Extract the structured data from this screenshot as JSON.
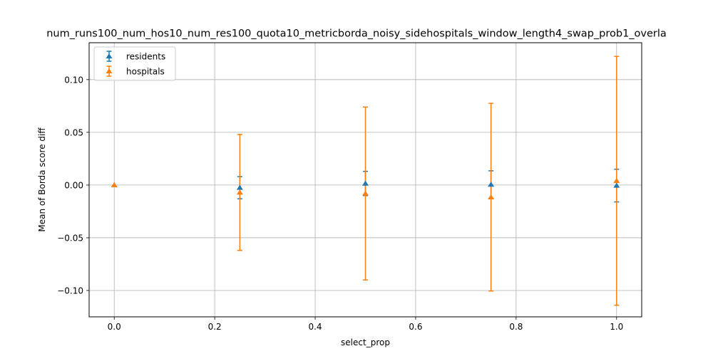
{
  "chart_data": {
    "type": "scatter",
    "title": "num_runs100_num_hos10_num_res100_quota10_metricborda_noisy_sidehospitals_window_length4_swap_prob1_overla",
    "xlabel": "select_prop",
    "ylabel": "Mean of Borda score diff",
    "xlim": [
      -0.05,
      1.05
    ],
    "ylim": [
      -0.125,
      0.135
    ],
    "xticks": [
      0.0,
      0.2,
      0.4,
      0.6,
      0.8,
      1.0
    ],
    "xtick_labels": [
      "0.0",
      "0.2",
      "0.4",
      "0.6",
      "0.8",
      "1.0"
    ],
    "yticks": [
      -0.1,
      -0.05,
      0.0,
      0.05,
      0.1
    ],
    "ytick_labels": [
      "−0.10",
      "−0.05",
      "0.00",
      "0.05",
      "0.10"
    ],
    "grid": true,
    "legend_position": "top-left",
    "series": [
      {
        "name": "residents",
        "color": "#1f77b4",
        "marker": "triangle-up",
        "x": [
          0.0,
          0.25,
          0.5,
          0.75,
          1.0
        ],
        "y": [
          0.0,
          -0.0025,
          0.0015,
          0.0005,
          -0.0005
        ],
        "yerr": [
          0.0,
          0.0105,
          0.0115,
          0.013,
          0.0155
        ]
      },
      {
        "name": "hospitals",
        "color": "#ff7f0e",
        "marker": "triangle-up",
        "x": [
          0.0,
          0.25,
          0.5,
          0.75,
          1.0
        ],
        "y": [
          0.0,
          -0.007,
          -0.008,
          -0.0115,
          0.004
        ],
        "yerr": [
          0.0,
          0.055,
          0.082,
          0.089,
          0.118
        ]
      }
    ]
  }
}
